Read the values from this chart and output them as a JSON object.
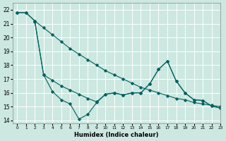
{
  "xlabel": "Humidex (Indice chaleur)",
  "xlim": [
    -0.5,
    23
  ],
  "ylim": [
    13.8,
    22.5
  ],
  "yticks": [
    14,
    15,
    16,
    17,
    18,
    19,
    20,
    21,
    22
  ],
  "xticks": [
    0,
    1,
    2,
    3,
    4,
    5,
    6,
    7,
    8,
    9,
    10,
    11,
    12,
    13,
    14,
    15,
    16,
    17,
    18,
    19,
    20,
    21,
    22,
    23
  ],
  "bg_color": "#cce8e0",
  "line_color": "#006060",
  "grid_color": "#ffffff",
  "series1": {
    "x": [
      0,
      1,
      2,
      3,
      4,
      5,
      6,
      7,
      8,
      9,
      10,
      11,
      12,
      13,
      14,
      15,
      16,
      17,
      18,
      19,
      20,
      21,
      22,
      23
    ],
    "y": [
      21.8,
      21.8,
      21.2,
      20.7,
      20.2,
      19.7,
      19.2,
      18.8,
      18.4,
      18.0,
      17.6,
      17.3,
      17.0,
      16.7,
      16.4,
      16.2,
      16.0,
      15.8,
      15.6,
      15.5,
      15.3,
      15.2,
      15.1,
      15.0
    ]
  },
  "series2": {
    "x": [
      0,
      1,
      2,
      3,
      4,
      5,
      6,
      7,
      8,
      9,
      10,
      11,
      12,
      13,
      14,
      15,
      16,
      17,
      18,
      19,
      20,
      21,
      22,
      23
    ],
    "y": [
      21.8,
      21.8,
      21.2,
      17.3,
      16.1,
      15.5,
      15.2,
      14.1,
      14.45,
      15.3,
      15.9,
      16.0,
      15.85,
      16.0,
      16.0,
      16.65,
      17.7,
      18.3,
      16.85,
      16.0,
      15.5,
      15.45,
      15.05,
      14.9
    ]
  },
  "series3": {
    "x": [
      2,
      3,
      4,
      5,
      6,
      7,
      8,
      9,
      10,
      11,
      12,
      13,
      14,
      15,
      16,
      17,
      18,
      19,
      20,
      21,
      22,
      23
    ],
    "y": [
      21.15,
      17.3,
      16.9,
      16.5,
      16.2,
      15.9,
      15.6,
      15.35,
      15.9,
      16.0,
      15.85,
      16.0,
      16.0,
      16.65,
      17.7,
      18.3,
      16.85,
      16.0,
      15.5,
      15.45,
      15.05,
      14.9
    ]
  }
}
